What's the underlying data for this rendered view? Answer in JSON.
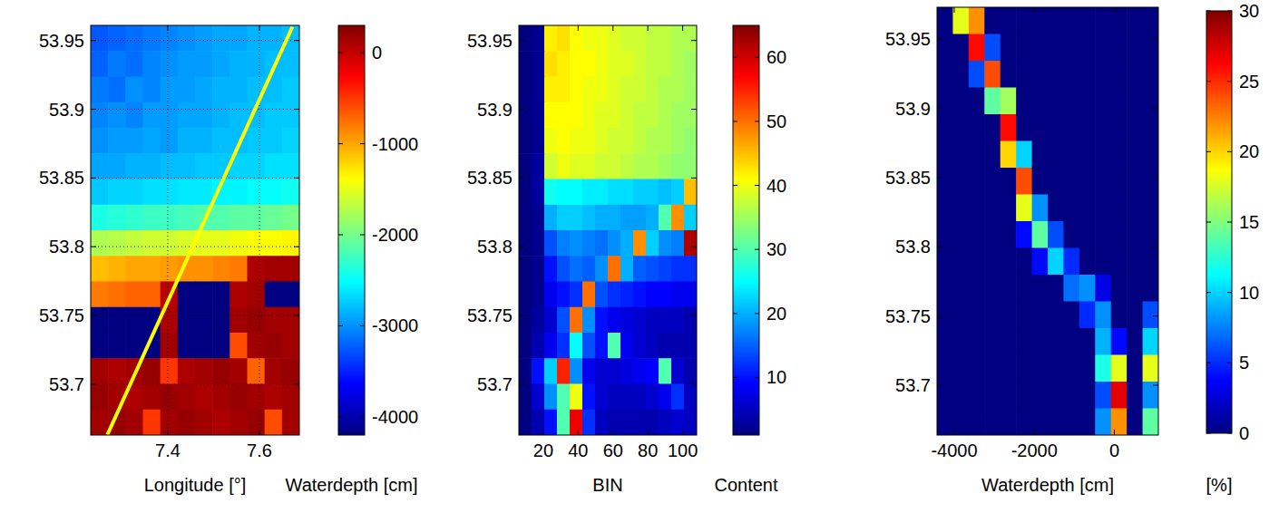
{
  "chart_data": [
    {
      "type": "heatmap",
      "x_label": "Longitude [°]",
      "xlim": [
        7.232,
        7.687
      ],
      "xticks": [
        7.4,
        7.6
      ],
      "ylim": [
        53.663,
        53.961
      ],
      "yticks": [
        53.7,
        53.75,
        53.8,
        53.85,
        53.9,
        53.95
      ],
      "grid": true,
      "cells": [
        [
          -3250,
          -3200,
          -3150,
          -3100,
          -3050,
          -3000,
          -2950,
          -2900,
          -2900,
          -2850,
          -2850,
          -2800
        ],
        [
          -3200,
          -3100,
          -3150,
          -3050,
          -3000,
          -2950,
          -2950,
          -2900,
          -2850,
          -2850,
          -2800,
          -2800
        ],
        [
          -3100,
          -3150,
          -3000,
          -3050,
          -2950,
          -2950,
          -2900,
          -2850,
          -2850,
          -2800,
          -2800,
          -2750
        ],
        [
          -3050,
          -3000,
          -3050,
          -2950,
          -2950,
          -2900,
          -2900,
          -2850,
          -2800,
          -2800,
          -2750,
          -2750
        ],
        [
          -3000,
          -2950,
          -2950,
          -2900,
          -2950,
          -2850,
          -2850,
          -2800,
          -2800,
          -2750,
          -2750,
          -2700
        ],
        [
          -2900,
          -2900,
          -2850,
          -2850,
          -2800,
          -2800,
          -2750,
          -2750,
          -2700,
          -2700,
          -2650,
          -2650
        ],
        [
          -2750,
          -2700,
          -2700,
          -2650,
          -2650,
          -2600,
          -2600,
          -2550,
          -2550,
          -2500,
          -2500,
          -2450
        ],
        [
          -2400,
          -2350,
          -2300,
          -2250,
          -2250,
          -2200,
          -2150,
          -2150,
          -2100,
          -2100,
          -2050,
          -2000
        ],
        [
          -1750,
          -1700,
          -1650,
          -1600,
          -1600,
          -1550,
          -1500,
          -1500,
          -1450,
          -1400,
          -1400,
          -1350
        ],
        [
          -1100,
          -1050,
          -1000,
          -1000,
          -950,
          -900,
          -900,
          -850,
          -800,
          100,
          150,
          150
        ],
        [
          -800,
          -750,
          -700,
          -700,
          50,
          -4200,
          -4200,
          -4200,
          100,
          150,
          -4200,
          -4200
        ],
        [
          -4200,
          -4200,
          -4200,
          -4200,
          100,
          -4200,
          -4200,
          -4200,
          150,
          200,
          150,
          150
        ],
        [
          -4200,
          -4200,
          -4200,
          -4200,
          150,
          -4200,
          -4200,
          -4200,
          -600,
          150,
          200,
          150
        ],
        [
          150,
          100,
          150,
          200,
          -500,
          100,
          150,
          200,
          150,
          -700,
          150,
          200
        ],
        [
          200,
          150,
          100,
          150,
          200,
          150,
          100,
          150,
          200,
          150,
          100,
          150
        ],
        [
          150,
          200,
          150,
          -500,
          150,
          200,
          150,
          100,
          150,
          200,
          -600,
          150
        ]
      ],
      "colorbar": {
        "label": "Waterdepth [cm]",
        "range": [
          -4200,
          300
        ],
        "ticks": [
          -4000,
          -3000,
          -2000,
          -1000,
          0
        ]
      },
      "series": [
        {
          "type": "line",
          "color": "#ffff00",
          "x": [
            7.268,
            7.672
          ],
          "values": [
            53.663,
            53.96
          ]
        }
      ]
    },
    {
      "type": "heatmap",
      "x_label": "BIN",
      "xlim": [
        6,
        108
      ],
      "xticks": [
        20,
        40,
        60,
        80,
        100
      ],
      "ylim": [
        53.663,
        53.961
      ],
      "yticks": [
        53.7,
        53.75,
        53.8,
        53.85,
        53.9,
        53.95
      ],
      "grid": false,
      "cells": [
        [
          1,
          2,
          42,
          43,
          41,
          40,
          40,
          39,
          38,
          38,
          37,
          37,
          36,
          36
        ],
        [
          1,
          2,
          43,
          42,
          41,
          41,
          40,
          39,
          39,
          38,
          37,
          37,
          36,
          35
        ],
        [
          1,
          2,
          42,
          42,
          41,
          40,
          40,
          39,
          38,
          38,
          37,
          36,
          36,
          35
        ],
        [
          1,
          2,
          41,
          41,
          41,
          40,
          39,
          39,
          38,
          37,
          37,
          36,
          35,
          35
        ],
        [
          1,
          2,
          40,
          41,
          40,
          40,
          39,
          38,
          38,
          37,
          36,
          36,
          35,
          34
        ],
        [
          1,
          3,
          38,
          40,
          39,
          39,
          38,
          38,
          37,
          36,
          36,
          35,
          34,
          34
        ],
        [
          1,
          3,
          26,
          25,
          25,
          24,
          24,
          23,
          23,
          22,
          22,
          21,
          22,
          45
        ],
        [
          1,
          2,
          20,
          22,
          22,
          21,
          20,
          20,
          19,
          19,
          20,
          30,
          48,
          22
        ],
        [
          1,
          2,
          14,
          17,
          18,
          17,
          16,
          18,
          20,
          48,
          22,
          18,
          17,
          62
        ],
        [
          1,
          2,
          10,
          14,
          16,
          15,
          18,
          50,
          20,
          15,
          14,
          13,
          12,
          12
        ],
        [
          1,
          2,
          8,
          10,
          12,
          50,
          14,
          12,
          11,
          10,
          9,
          9,
          8,
          8
        ],
        [
          1,
          3,
          6,
          14,
          50,
          18,
          10,
          8,
          7,
          6,
          5,
          5,
          5,
          4
        ],
        [
          1,
          4,
          8,
          12,
          25,
          14,
          10,
          30,
          8,
          6,
          5,
          4,
          4,
          4
        ],
        [
          1,
          10,
          22,
          55,
          18,
          8,
          6,
          6,
          7,
          8,
          9,
          30,
          6,
          4
        ],
        [
          1,
          6,
          18,
          30,
          40,
          10,
          6,
          5,
          5,
          5,
          6,
          8,
          12,
          5
        ],
        [
          1,
          4,
          10,
          30,
          58,
          12,
          5,
          4,
          4,
          4,
          4,
          5,
          6,
          5
        ]
      ],
      "colorbar": {
        "label": "Content",
        "range": [
          1,
          65
        ],
        "ticks": [
          10,
          20,
          30,
          40,
          50,
          60
        ]
      }
    },
    {
      "type": "heatmap",
      "x_label": "Waterdepth [cm]",
      "xlim": [
        -4430,
        1100
      ],
      "xticks": [
        -4000,
        -2000,
        0
      ],
      "ylim": [
        53.664,
        53.973
      ],
      "yticks": [
        53.7,
        53.75,
        53.8,
        53.85,
        53.9,
        53.95
      ],
      "grid": false,
      "cells": [
        [
          0,
          18,
          22,
          0,
          0,
          0,
          0,
          0,
          0,
          0,
          0,
          0,
          0,
          0
        ],
        [
          0,
          0,
          26,
          6,
          0,
          0,
          0,
          0,
          0,
          0,
          0,
          0,
          0,
          0
        ],
        [
          0,
          0,
          6,
          24,
          0,
          0,
          0,
          0,
          0,
          0,
          0,
          0,
          0,
          0
        ],
        [
          0,
          0,
          0,
          14,
          16,
          0,
          0,
          0,
          0,
          0,
          0,
          0,
          0,
          0
        ],
        [
          0,
          0,
          0,
          0,
          26,
          0,
          0,
          0,
          0,
          0,
          0,
          0,
          0,
          0
        ],
        [
          0,
          0,
          0,
          0,
          20,
          10,
          0,
          0,
          0,
          0,
          0,
          0,
          0,
          0
        ],
        [
          0,
          0,
          0,
          0,
          0,
          24,
          0,
          0,
          0,
          0,
          0,
          0,
          0,
          0
        ],
        [
          0,
          0,
          0,
          0,
          0,
          18,
          8,
          0,
          0,
          0,
          0,
          0,
          0,
          0
        ],
        [
          0,
          0,
          0,
          0,
          0,
          4,
          14,
          6,
          0,
          0,
          0,
          0,
          0,
          0
        ],
        [
          0,
          0,
          0,
          0,
          0,
          0,
          4,
          10,
          5,
          0,
          0,
          0,
          0,
          0
        ],
        [
          0,
          0,
          0,
          0,
          0,
          0,
          0,
          0,
          7,
          8,
          3,
          0,
          0,
          0
        ],
        [
          0,
          0,
          0,
          0,
          0,
          0,
          0,
          0,
          0,
          5,
          8,
          0,
          0,
          6
        ],
        [
          0,
          0,
          0,
          0,
          0,
          0,
          0,
          0,
          0,
          0,
          9,
          4,
          0,
          10
        ],
        [
          0,
          0,
          0,
          0,
          0,
          0,
          0,
          0,
          0,
          0,
          12,
          18,
          0,
          18
        ],
        [
          0,
          0,
          0,
          0,
          0,
          0,
          0,
          0,
          0,
          0,
          6,
          27,
          0,
          8
        ],
        [
          0,
          0,
          0,
          0,
          0,
          0,
          0,
          0,
          0,
          0,
          8,
          22,
          0,
          14
        ]
      ],
      "colorbar": {
        "label": "[%]",
        "range": [
          0,
          30
        ],
        "ticks": [
          0,
          5,
          10,
          15,
          20,
          25,
          30
        ]
      }
    }
  ]
}
